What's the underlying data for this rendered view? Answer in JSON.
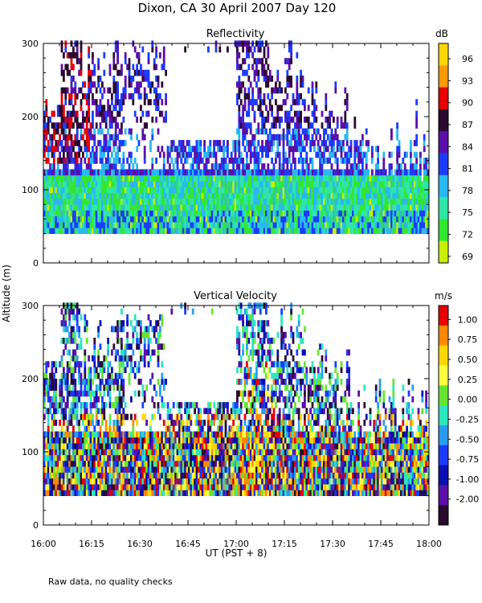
{
  "figure": {
    "title": "Dixon, CA 30 April 2007  Day 120",
    "y_axis_label": "Altitude (m)",
    "x_axis_label": "UT  (PST + 8)",
    "footnote": "Raw data, no quality checks"
  },
  "chart_data": [
    {
      "type": "heatmap",
      "title": "Reflectivity",
      "xlabel": "UT  (PST + 8)",
      "ylabel": "Altitude (m)",
      "x_ticks": [
        "16:00",
        "16:15",
        "16:30",
        "16:45",
        "17:00",
        "17:15",
        "17:30",
        "17:45",
        "18:00"
      ],
      "x_range_minutes": [
        0,
        120
      ],
      "ylim": [
        0,
        300
      ],
      "y_ticks": [
        0,
        100,
        200,
        300
      ],
      "colorbar": {
        "unit": "dB",
        "labels": [
          "96",
          "93",
          "90",
          "87",
          "84",
          "81",
          "78",
          "75",
          "72",
          "69"
        ],
        "colors": [
          "#ffd700",
          "#ff9900",
          "#e60000",
          "#2a0a2e",
          "#5a0fa8",
          "#1a3cff",
          "#2ab8f0",
          "#2ee6a8",
          "#33e633",
          "#c8f000"
        ]
      }
    },
    {
      "type": "heatmap",
      "title": "Vertical Velocity",
      "xlabel": "UT  (PST + 8)",
      "ylabel": "Altitude (m)",
      "x_ticks": [
        "16:00",
        "16:15",
        "16:30",
        "16:45",
        "17:00",
        "17:15",
        "17:30",
        "17:45",
        "18:00"
      ],
      "x_range_minutes": [
        0,
        120
      ],
      "ylim": [
        0,
        300
      ],
      "y_ticks": [
        0,
        100,
        200,
        300
      ],
      "colorbar": {
        "unit": "m/s",
        "labels": [
          "1.00",
          "0.75",
          "0.50",
          "0.25",
          "0.00",
          "-0.25",
          "-0.50",
          "-0.75",
          "-1.00",
          "-2.00"
        ],
        "colors": [
          "#e60000",
          "#ff8800",
          "#ffd700",
          "#ffff40",
          "#66e633",
          "#2ee6c0",
          "#2a9cf0",
          "#1a3cff",
          "#0a10b0",
          "#5a0fa8",
          "#2a0a2e"
        ]
      }
    }
  ]
}
